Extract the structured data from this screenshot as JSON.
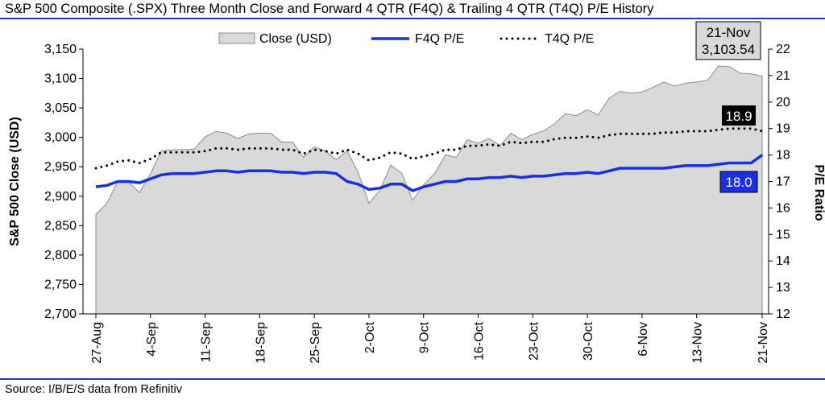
{
  "title": "S&P 500 Composite (.SPX) Three Month Close and Forward 4 QTR (F4Q) & Trailing 4 QTR (T4Q) P/E History",
  "source": "Source: I/B/E/S data from Refinitiv",
  "chart_data": {
    "type": "area+line",
    "title": "S&P 500 Composite (.SPX) Three Month Close and Forward 4 QTR (F4Q) & Trailing 4 QTR (T4Q) P/E History",
    "ylabel": "S&P 500 Close (USD)",
    "y2label": "P/E Ratio",
    "ylim": [
      2700,
      3150
    ],
    "y2lim": [
      12,
      22
    ],
    "yticks": [
      "2,700",
      "2,750",
      "2,800",
      "2,850",
      "2,900",
      "2,950",
      "3,000",
      "3,050",
      "3,100",
      "3,150"
    ],
    "y2ticks": [
      "12",
      "13",
      "14",
      "15",
      "16",
      "17",
      "18",
      "19",
      "20",
      "21",
      "22"
    ],
    "x_tick_labels": [
      "27-Aug",
      "4-Sep",
      "11-Sep",
      "18-Sep",
      "25-Sep",
      "2-Oct",
      "9-Oct",
      "16-Oct",
      "23-Oct",
      "30-Oct",
      "6-Nov",
      "13-Nov",
      "21-Nov"
    ],
    "grid": false,
    "legend_position": "top",
    "x": [
      "27-Aug",
      "28-Aug",
      "29-Aug",
      "30-Aug",
      "3-Sep",
      "4-Sep",
      "5-Sep",
      "6-Sep",
      "9-Sep",
      "10-Sep",
      "11-Sep",
      "12-Sep",
      "13-Sep",
      "16-Sep",
      "17-Sep",
      "18-Sep",
      "19-Sep",
      "20-Sep",
      "23-Sep",
      "24-Sep",
      "25-Sep",
      "26-Sep",
      "27-Sep",
      "30-Sep",
      "1-Oct",
      "2-Oct",
      "3-Oct",
      "4-Oct",
      "7-Oct",
      "8-Oct",
      "9-Oct",
      "10-Oct",
      "11-Oct",
      "14-Oct",
      "15-Oct",
      "16-Oct",
      "17-Oct",
      "18-Oct",
      "21-Oct",
      "22-Oct",
      "23-Oct",
      "24-Oct",
      "25-Oct",
      "28-Oct",
      "29-Oct",
      "30-Oct",
      "31-Oct",
      "1-Nov",
      "4-Nov",
      "5-Nov",
      "6-Nov",
      "7-Nov",
      "8-Nov",
      "11-Nov",
      "12-Nov",
      "13-Nov",
      "14-Nov",
      "15-Nov",
      "18-Nov",
      "19-Nov",
      "20-Nov",
      "21-Nov"
    ],
    "series": [
      {
        "name": "Close (USD)",
        "type": "area",
        "color": "#d9d9d9",
        "axis": "left",
        "values": [
          2869,
          2888,
          2925,
          2924,
          2906,
          2938,
          2977,
          2979,
          2979,
          2980,
          3001,
          3010,
          3007,
          2998,
          3006,
          3007,
          3007,
          2992,
          2992,
          2966,
          2984,
          2977,
          2962,
          2977,
          2941,
          2888,
          2910,
          2953,
          2939,
          2893,
          2919,
          2938,
          2970,
          2966,
          2996,
          2990,
          2998,
          2986,
          3007,
          2996,
          3005,
          3011,
          3023,
          3040,
          3037,
          3047,
          3038,
          3067,
          3078,
          3075,
          3077,
          3085,
          3094,
          3087,
          3092,
          3094,
          3097,
          3121,
          3120,
          3109,
          3108,
          3104
        ]
      },
      {
        "name": "F4Q P/E",
        "type": "line",
        "color": "#1a2fe0",
        "axis": "right",
        "values": [
          16.8,
          16.85,
          17,
          17,
          16.95,
          17.1,
          17.25,
          17.3,
          17.3,
          17.3,
          17.35,
          17.4,
          17.4,
          17.35,
          17.4,
          17.4,
          17.4,
          17.35,
          17.35,
          17.3,
          17.35,
          17.35,
          17.3,
          17,
          16.9,
          16.7,
          16.75,
          16.9,
          16.9,
          16.65,
          16.8,
          16.9,
          17,
          17,
          17.1,
          17.1,
          17.15,
          17.15,
          17.2,
          17.15,
          17.2,
          17.2,
          17.25,
          17.3,
          17.3,
          17.35,
          17.3,
          17.4,
          17.5,
          17.5,
          17.5,
          17.5,
          17.5,
          17.55,
          17.6,
          17.6,
          17.6,
          17.65,
          17.7,
          17.7,
          17.7,
          18
        ]
      },
      {
        "name": "T4Q P/E",
        "type": "dotted-line",
        "color": "#000000",
        "axis": "right",
        "values": [
          17.5,
          17.6,
          17.75,
          17.8,
          17.7,
          17.85,
          18.1,
          18.1,
          18.1,
          18.1,
          18.15,
          18.25,
          18.25,
          18.2,
          18.25,
          18.25,
          18.25,
          18.2,
          18.2,
          18.05,
          18.2,
          18.15,
          18.05,
          18.2,
          18.05,
          17.8,
          17.9,
          18.1,
          18.05,
          17.85,
          17.95,
          18.05,
          18.2,
          18.2,
          18.35,
          18.35,
          18.4,
          18.35,
          18.5,
          18.45,
          18.5,
          18.5,
          18.6,
          18.65,
          18.65,
          18.7,
          18.65,
          18.75,
          18.8,
          18.8,
          18.8,
          18.8,
          18.85,
          18.85,
          18.9,
          18.9,
          18.9,
          18.95,
          19,
          19,
          19,
          18.9
        ]
      }
    ],
    "annotations": [
      {
        "kind": "callout",
        "date": "21-Nov",
        "value": "3,103.54"
      },
      {
        "kind": "label",
        "text": "18.9"
      },
      {
        "kind": "label",
        "text": "18.0"
      }
    ]
  }
}
